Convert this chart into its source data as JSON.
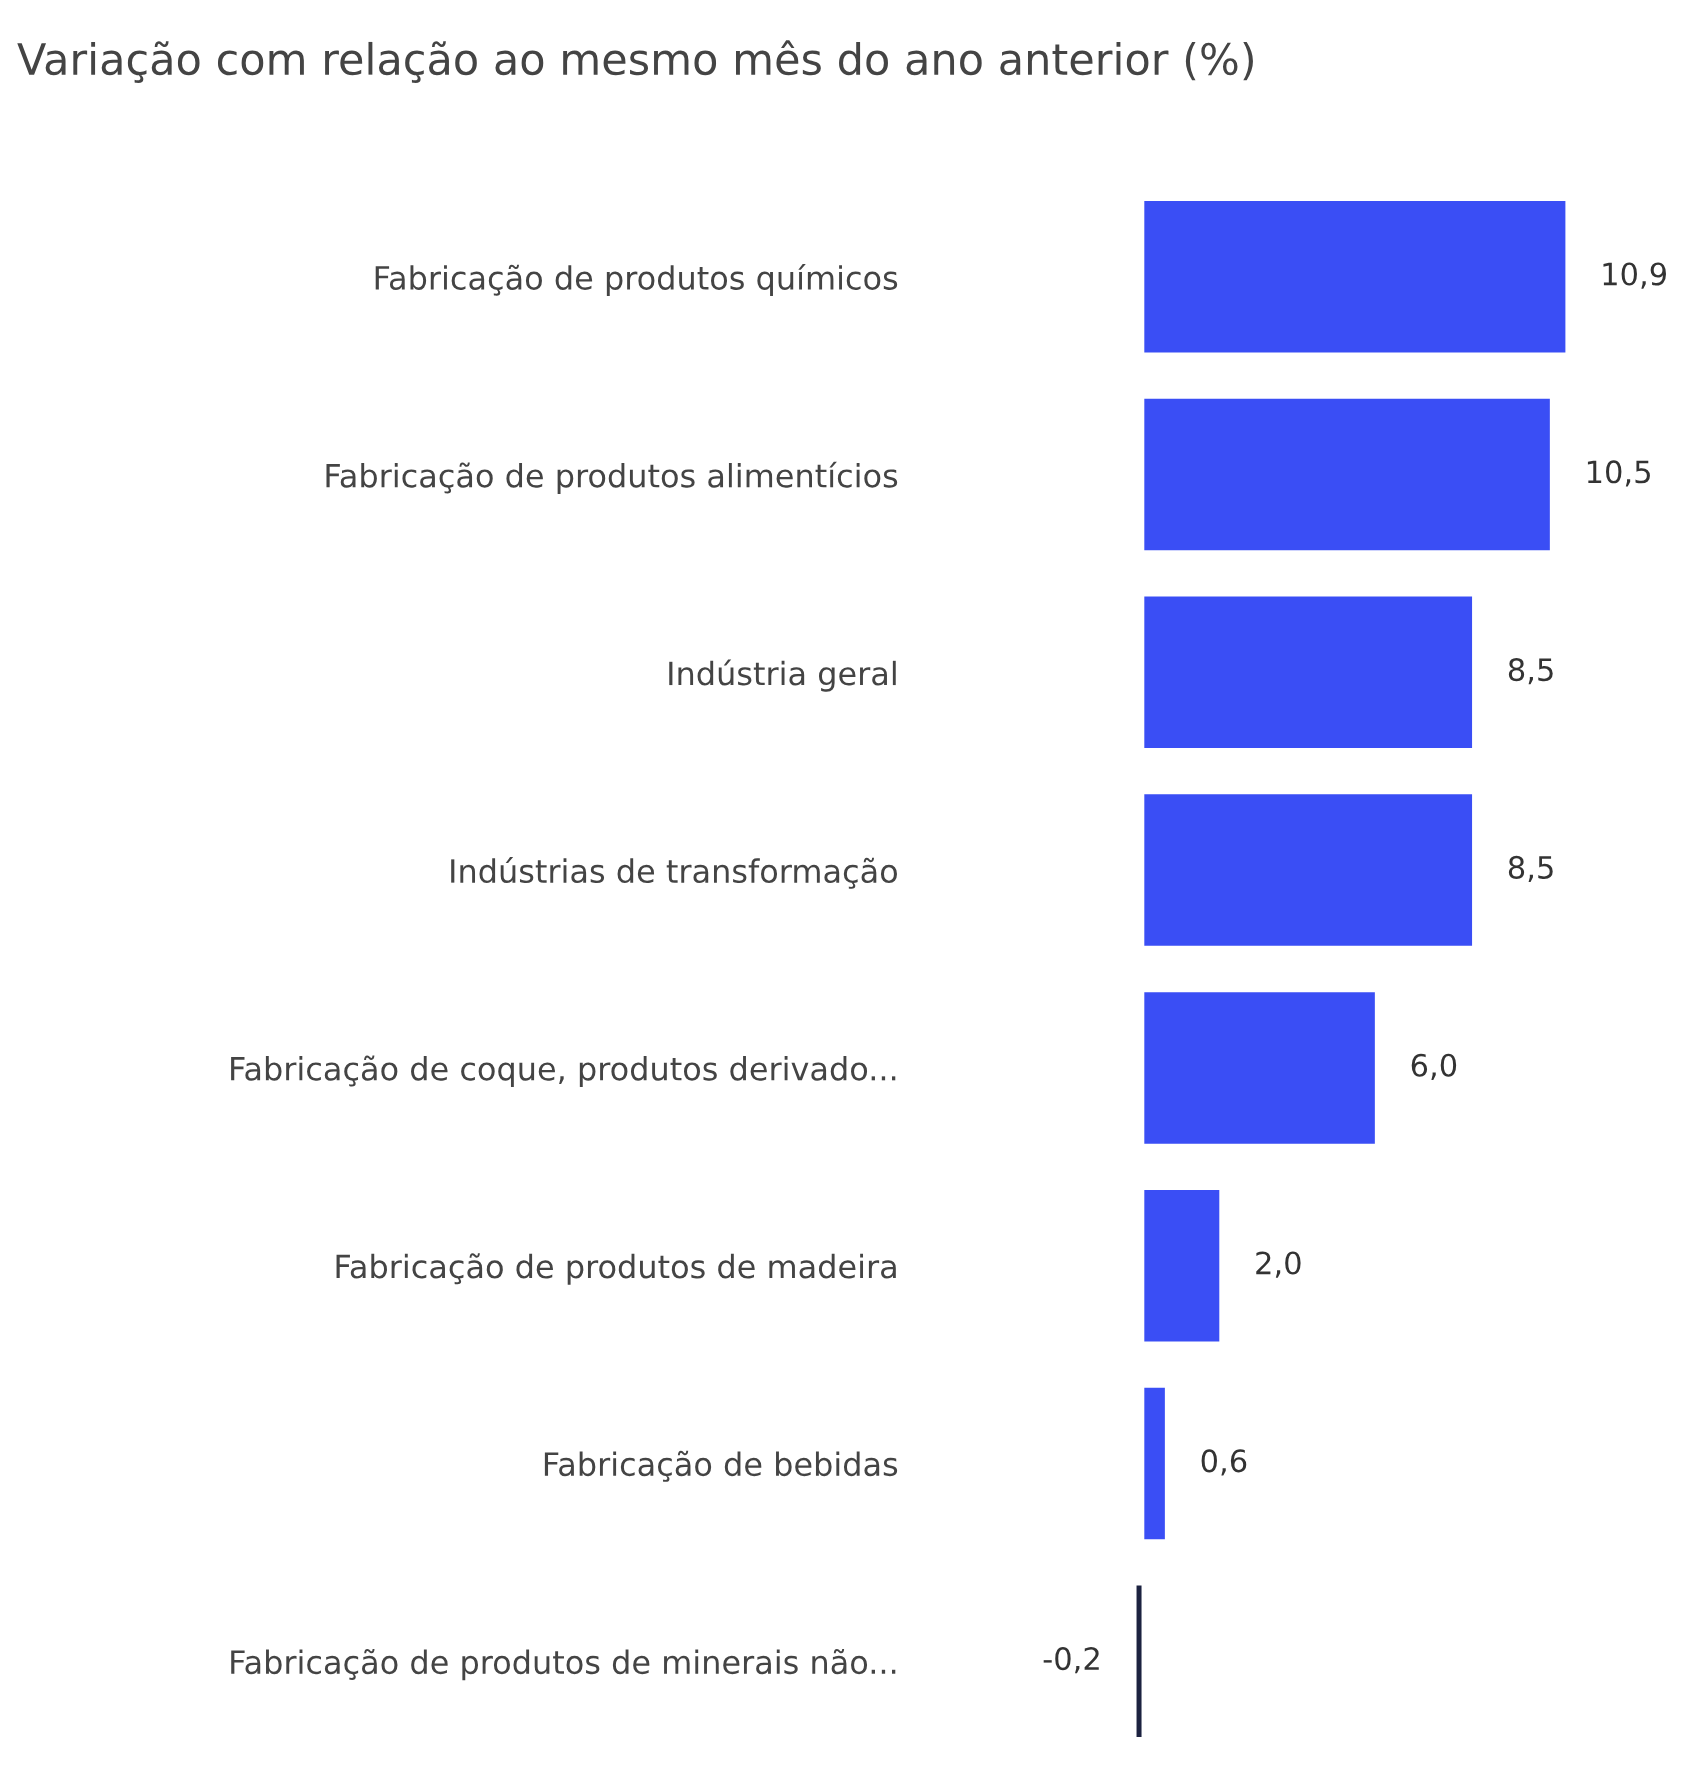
{
  "chart_data": {
    "type": "bar",
    "orientation": "horizontal",
    "title": "Variação com relação ao mesmo mês do ano anterior (%)",
    "categories": [
      "Fabricação de produtos químicos",
      "Fabricação de produtos alimentícios",
      "Indústria geral",
      "Indústrias de transformação",
      "Fabricação de coque, produtos derivado...",
      "Fabricação de produtos de madeira",
      "Fabricação de bebidas",
      "Fabricação de produtos de minerais não..."
    ],
    "values": [
      10.9,
      10.5,
      8.5,
      8.5,
      6.0,
      2.0,
      0.6,
      -0.2
    ],
    "value_labels": [
      "10,9",
      "10,5",
      "8,5",
      "8,5",
      "6,0",
      "2,0",
      "0,6",
      "-0,2"
    ],
    "colors": [
      "#3a4ef5",
      "#3a4ef5",
      "#3a4ef5",
      "#3a4ef5",
      "#3a4ef5",
      "#3a4ef5",
      "#3a4ef5",
      "#1c2240"
    ],
    "grid": false,
    "legend": false
  }
}
